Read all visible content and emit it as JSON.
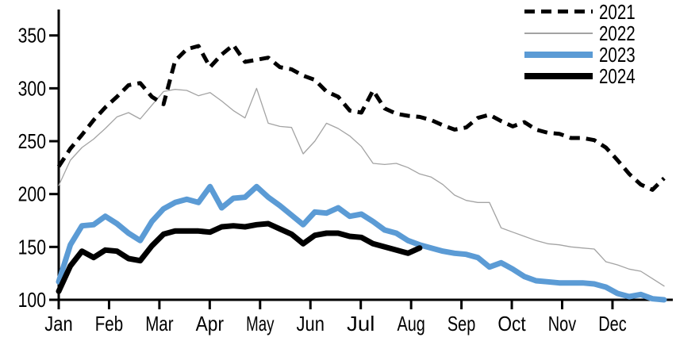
{
  "chart_data": {
    "type": "line",
    "sampling": "weekly",
    "x_axis": {
      "tick_labels": [
        "Jan",
        "Feb",
        "Mar",
        "Apr",
        "May",
        "Jun",
        "Jul",
        "Aug",
        "Sep",
        "Oct",
        "Nov",
        "Dec"
      ]
    },
    "y_axis": {
      "ticks": [
        100,
        150,
        200,
        250,
        300,
        350
      ],
      "ylim": [
        100,
        374
      ],
      "grid": false
    },
    "legend": {
      "position": "top-right"
    },
    "series": [
      {
        "name": "2021",
        "color": "#000000",
        "style": "dashed",
        "width": 5,
        "values": [
          226,
          243,
          256,
          270,
          282,
          292,
          303,
          305,
          292,
          285,
          326,
          337,
          340,
          320,
          332,
          341,
          325,
          327,
          329,
          320,
          318,
          312,
          308,
          297,
          292,
          279,
          277,
          298,
          281,
          276,
          274,
          273,
          270,
          265,
          261,
          263,
          272,
          275,
          269,
          264,
          268,
          261,
          258,
          257,
          253,
          253,
          251,
          244,
          232,
          219,
          209,
          204,
          215
        ]
      },
      {
        "name": "2022",
        "color": "#A3A3A3",
        "style": "solid",
        "width": 1.3,
        "values": [
          208,
          232,
          244,
          252,
          262,
          273,
          277,
          271,
          284,
          297,
          299,
          298,
          293,
          296,
          288,
          279,
          272,
          300,
          267,
          264,
          263,
          238,
          250,
          267,
          262,
          255,
          245,
          229,
          228,
          229,
          225,
          219,
          216,
          209,
          199,
          194,
          192,
          192,
          168,
          164,
          160,
          156,
          153,
          152,
          150,
          149,
          148,
          136,
          133,
          129,
          127,
          120,
          113
        ]
      },
      {
        "name": "2023",
        "color": "#5B9BD5",
        "style": "solid",
        "width": 7,
        "values": [
          117,
          152,
          170,
          171,
          179,
          172,
          163,
          156,
          174,
          186,
          192,
          195,
          192,
          207,
          187,
          196,
          197,
          207,
          197,
          189,
          180,
          171,
          183,
          182,
          187,
          179,
          181,
          174,
          166,
          163,
          156,
          152,
          149,
          146,
          144,
          143,
          140,
          131,
          135,
          129,
          122,
          118,
          117,
          116,
          116,
          116,
          115,
          112,
          106,
          103,
          105,
          101,
          100
        ]
      },
      {
        "name": "2024",
        "color": "#000000",
        "style": "solid",
        "width": 7,
        "values": [
          108,
          132,
          146,
          140,
          147,
          146,
          139,
          137,
          151,
          162,
          165,
          165,
          165,
          164,
          169,
          170,
          169,
          171,
          172,
          167,
          162,
          153,
          161,
          163,
          163,
          160,
          159,
          153,
          150,
          147,
          144,
          149
        ]
      }
    ]
  }
}
